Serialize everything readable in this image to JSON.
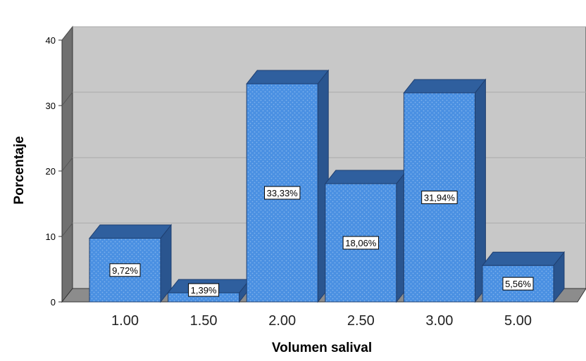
{
  "chart_data": {
    "type": "bar",
    "style": "3d",
    "categories": [
      "1.00",
      "1.50",
      "2.00",
      "2.50",
      "3.00",
      "5.00"
    ],
    "values": [
      9.72,
      1.39,
      33.33,
      18.06,
      31.94,
      5.56
    ],
    "data_labels": [
      "9,72%",
      "1,39%",
      "33,33%",
      "18,06%",
      "31,94%",
      "5,56%"
    ],
    "title": "",
    "xlabel": "Volumen salival",
    "ylabel": "Porcentaje",
    "ylim": [
      0,
      40
    ],
    "yticks": [
      "0",
      "10",
      "20",
      "30",
      "40"
    ],
    "grid": true,
    "legend": "none"
  },
  "colors": {
    "bar_front": "#4a90e2",
    "bar_top": "#2f5f9e",
    "bar_side": "#2a558f",
    "bar_outline": "#1f3f70",
    "back_wall": "#c8c8c8",
    "side_wall": "#707070",
    "floor": "#8c8c8c",
    "grid": "#aaaaaa"
  }
}
